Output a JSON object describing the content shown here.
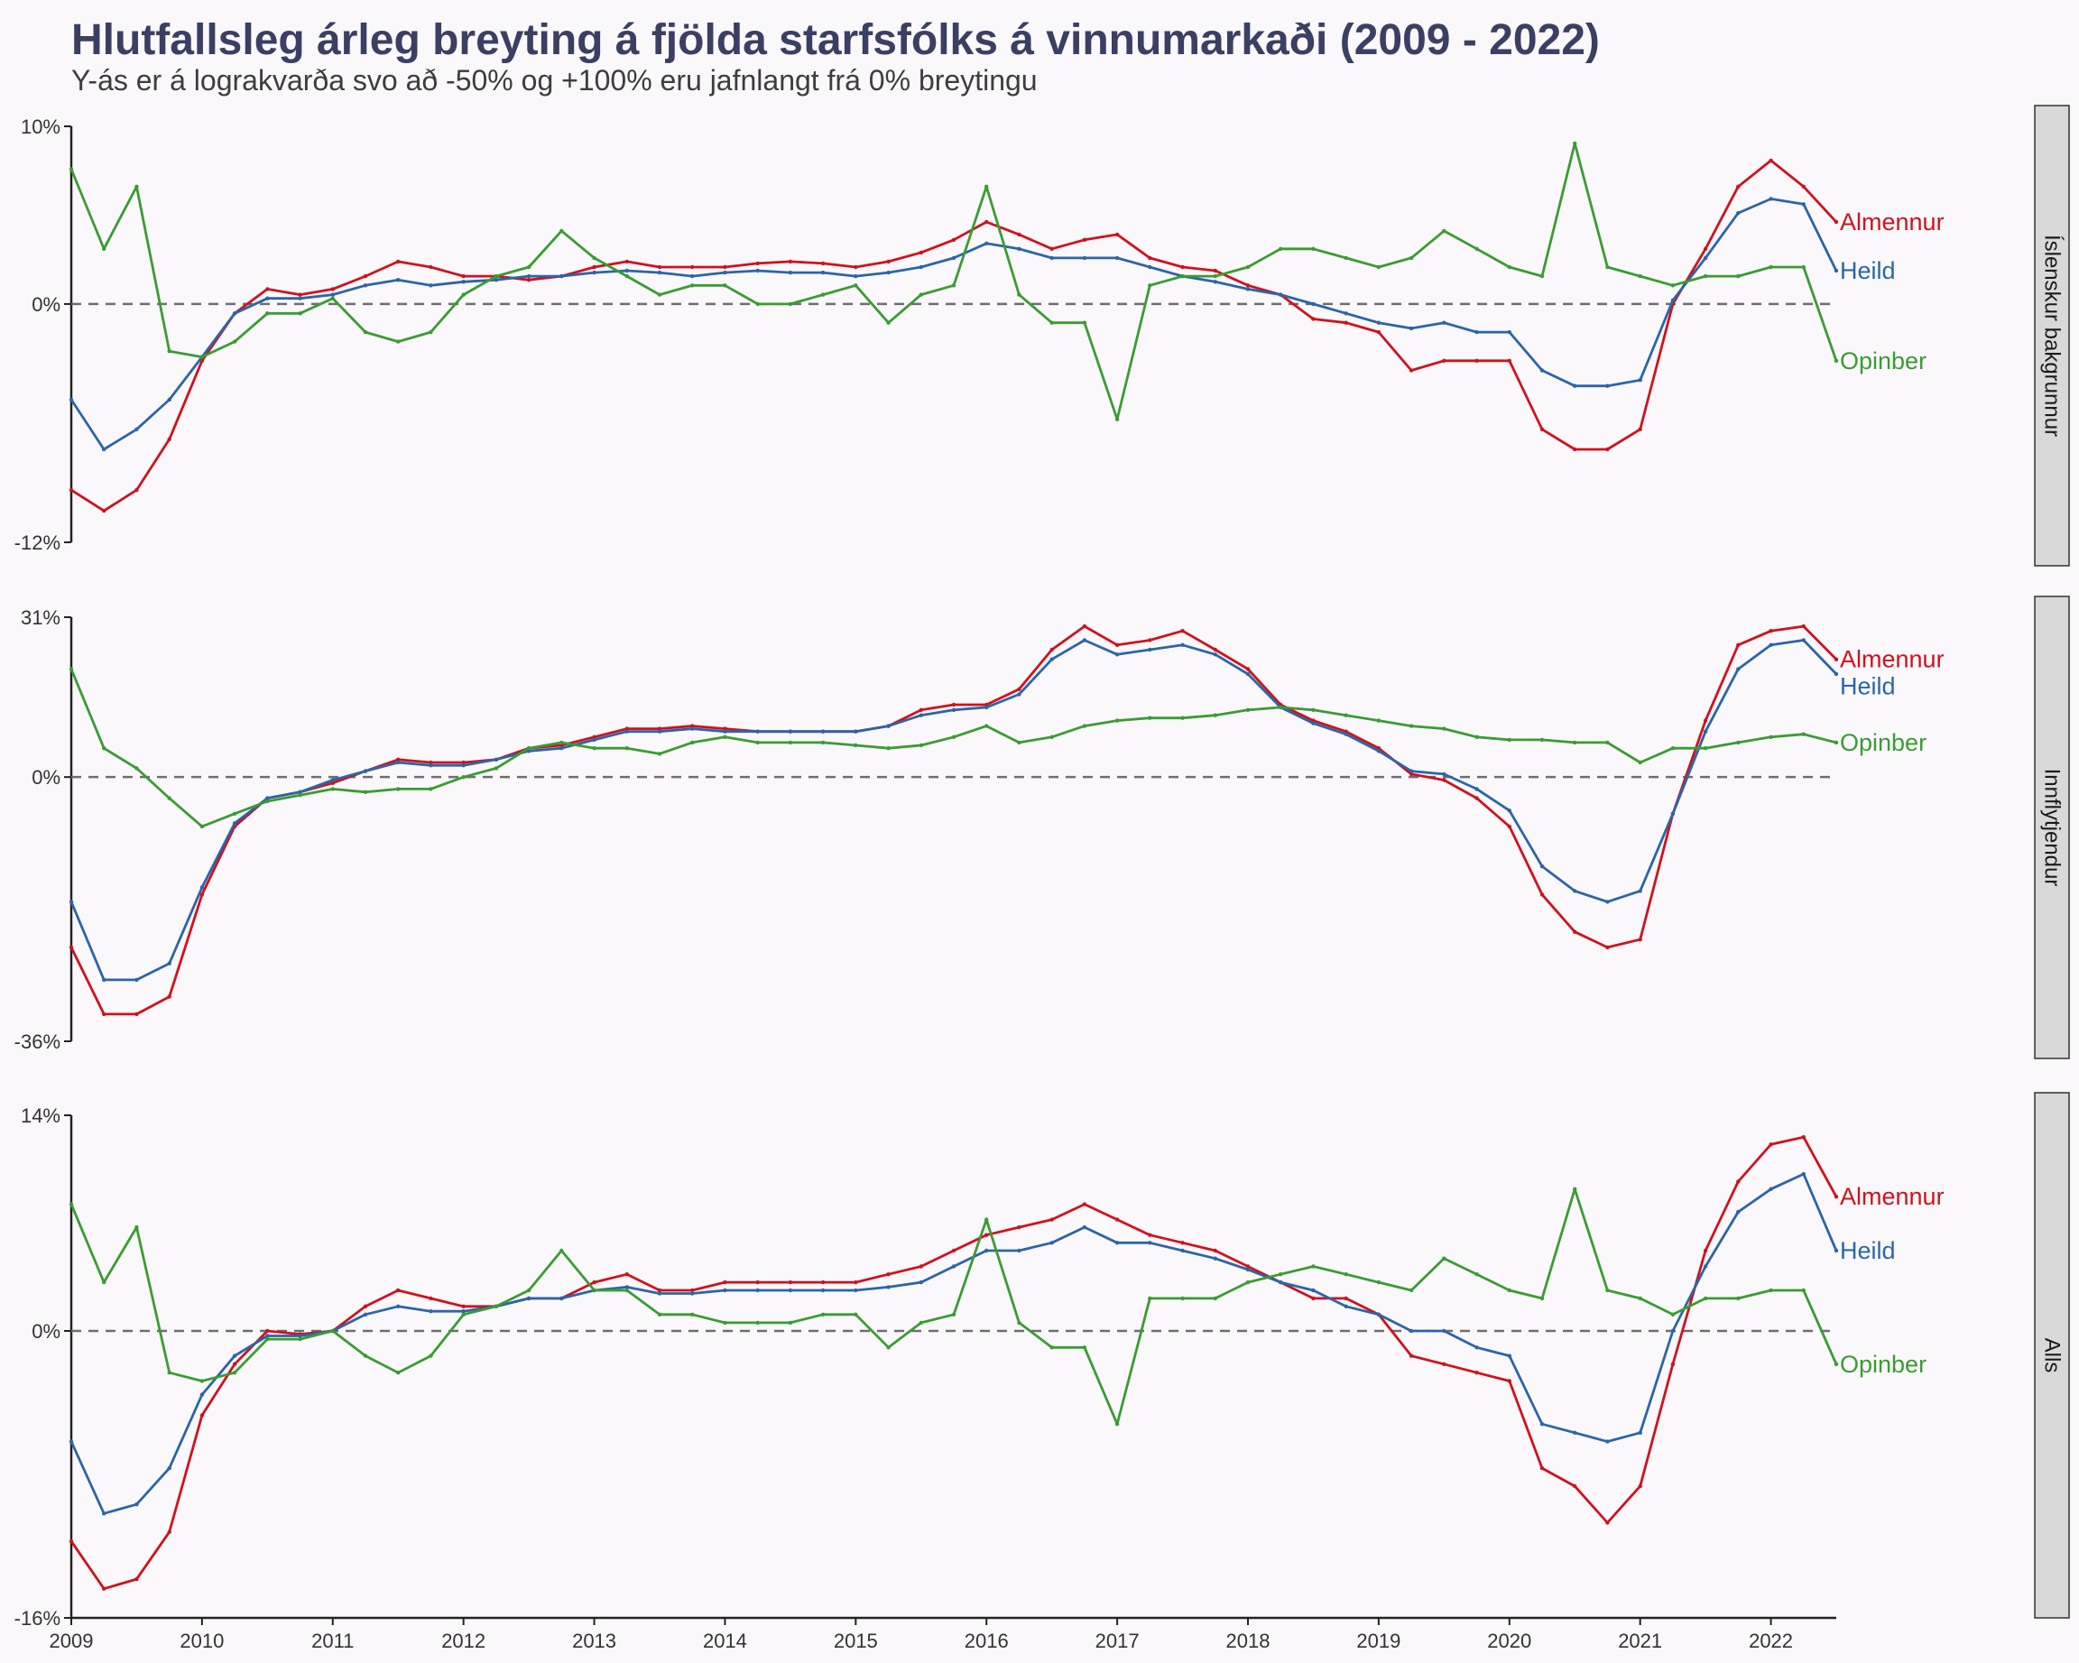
{
  "title": "Hlutfallsleg árleg breyting á fjölda starfsfólks á vinnumarkaði (2009 - 2022)",
  "subtitle": "Y-ás er á lograkvarða svo að -50% og +100% eru jafnlangt frá 0% breytingu",
  "colors": {
    "background": "#faf8fa",
    "Almennur": "#d0111f",
    "Heild": "#2c65a8",
    "Opinber": "#3a9c33",
    "zero_line": "#6e6e6e",
    "strip_fill": "#d9d9d9"
  },
  "chart_data": {
    "type": "line",
    "x_range": [
      2009.0,
      2022.5
    ],
    "x_ticks": [
      "2009",
      "2010",
      "2011",
      "2012",
      "2013",
      "2014",
      "2015",
      "2016",
      "2017",
      "2018",
      "2019",
      "2020",
      "2021",
      "2022"
    ],
    "y_scale": "log (growth ratio)",
    "reference_line": "0% dashed",
    "x": [
      2009.0,
      2009.25,
      2009.5,
      2009.75,
      2010.0,
      2010.25,
      2010.5,
      2010.75,
      2011.0,
      2011.25,
      2011.5,
      2011.75,
      2012.0,
      2012.25,
      2012.5,
      2012.75,
      2013.0,
      2013.25,
      2013.5,
      2013.75,
      2014.0,
      2014.25,
      2014.5,
      2014.75,
      2015.0,
      2015.25,
      2015.5,
      2015.75,
      2016.0,
      2016.25,
      2016.5,
      2016.75,
      2017.0,
      2017.25,
      2017.5,
      2017.75,
      2018.0,
      2018.25,
      2018.5,
      2018.75,
      2019.0,
      2019.25,
      2019.5,
      2019.75,
      2020.0,
      2020.25,
      2020.5,
      2020.75,
      2021.0,
      2021.25,
      2021.5,
      2021.75,
      2022.0,
      2022.25,
      2022.5
    ],
    "panels": [
      {
        "strip_label": "Íslenskur bakgrunnur",
        "ylim": [
          -12,
          10
        ],
        "y_tick_labels": [
          "10%",
          "0%",
          "-12%"
        ],
        "series": [
          {
            "name": "Almennur",
            "values": [
              -9.5,
              -10.5,
              -9.5,
              -7.0,
              -3.0,
              -0.5,
              0.8,
              0.5,
              0.8,
              1.5,
              2.3,
              2.0,
              1.5,
              1.5,
              1.3,
              1.5,
              2.0,
              2.3,
              2.0,
              2.0,
              2.0,
              2.2,
              2.3,
              2.2,
              2.0,
              2.3,
              2.8,
              3.5,
              4.5,
              3.8,
              3.0,
              3.5,
              3.8,
              2.5,
              2.0,
              1.8,
              1.0,
              0.5,
              -0.8,
              -1.0,
              -1.5,
              -3.5,
              -3.0,
              -3.0,
              -3.0,
              -6.5,
              -7.5,
              -7.5,
              -6.5,
              0.0,
              3.0,
              6.5,
              8.0,
              6.5,
              4.5
            ]
          },
          {
            "name": "Heild",
            "values": [
              -5.0,
              -7.5,
              -6.5,
              -5.0,
              -2.8,
              -0.5,
              0.3,
              0.3,
              0.5,
              1.0,
              1.3,
              1.0,
              1.2,
              1.3,
              1.5,
              1.5,
              1.7,
              1.8,
              1.7,
              1.5,
              1.7,
              1.8,
              1.7,
              1.7,
              1.5,
              1.7,
              2.0,
              2.5,
              3.3,
              3.0,
              2.5,
              2.5,
              2.5,
              2.0,
              1.5,
              1.2,
              0.8,
              0.5,
              0.0,
              -0.5,
              -1.0,
              -1.3,
              -1.0,
              -1.5,
              -1.5,
              -3.5,
              -4.3,
              -4.3,
              -4.0,
              0.2,
              2.5,
              5.0,
              5.8,
              5.5,
              1.8
            ]
          },
          {
            "name": "Opinber",
            "values": [
              7.5,
              3.0,
              6.5,
              -2.5,
              -2.8,
              -2.0,
              -0.5,
              -0.5,
              0.3,
              -1.5,
              -2.0,
              -1.5,
              0.5,
              1.5,
              2.0,
              4.0,
              2.5,
              1.5,
              0.5,
              1.0,
              1.0,
              0.0,
              0.0,
              0.5,
              1.0,
              -1.0,
              0.5,
              1.0,
              6.5,
              0.5,
              -1.0,
              -1.0,
              -6.0,
              1.0,
              1.5,
              1.5,
              2.0,
              3.0,
              3.0,
              2.5,
              2.0,
              2.5,
              4.0,
              3.0,
              2.0,
              1.5,
              9.0,
              2.0,
              1.5,
              1.0,
              1.5,
              1.5,
              2.0,
              2.0,
              -3.0
            ]
          }
        ]
      },
      {
        "strip_label": "Innflytjendur",
        "ylim": [
          -36,
          31
        ],
        "y_tick_labels": [
          "31%",
          "0%",
          "-36%"
        ],
        "series": [
          {
            "name": "Almennur",
            "values": [
              -25.0,
              -33.0,
              -33.0,
              -31.0,
              -18.0,
              -8.0,
              -3.5,
              -2.5,
              -1.0,
              1.0,
              3.0,
              2.5,
              2.5,
              3.0,
              5.0,
              5.5,
              7.0,
              8.5,
              8.5,
              9.0,
              8.5,
              8.0,
              8.0,
              8.0,
              8.0,
              9.0,
              12.0,
              13.0,
              13.0,
              16.0,
              24.0,
              29.0,
              25.0,
              26.0,
              28.0,
              24.0,
              20.0,
              13.0,
              10.0,
              8.0,
              5.0,
              0.5,
              -0.5,
              -3.5,
              -8.0,
              -18.0,
              -23.0,
              -25.0,
              -24.0,
              -6.0,
              10.0,
              25.0,
              28.0,
              29.0,
              22.0
            ]
          },
          {
            "name": "Heild",
            "values": [
              -19.0,
              -29.0,
              -29.0,
              -27.0,
              -17.0,
              -7.5,
              -3.5,
              -2.5,
              -0.5,
              1.0,
              2.5,
              2.0,
              2.0,
              3.0,
              4.5,
              5.0,
              6.5,
              8.0,
              8.0,
              8.5,
              8.0,
              8.0,
              8.0,
              8.0,
              8.0,
              9.0,
              11.0,
              12.0,
              12.5,
              15.0,
              22.0,
              26.0,
              23.0,
              24.0,
              25.0,
              23.0,
              19.0,
              12.5,
              9.5,
              7.5,
              4.5,
              1.0,
              0.5,
              -2.0,
              -5.5,
              -14.0,
              -17.5,
              -19.0,
              -17.5,
              -6.0,
              8.0,
              20.0,
              25.0,
              26.0,
              19.0
            ]
          },
          {
            "name": "Opinber",
            "values": [
              20.0,
              5.0,
              1.5,
              -3.5,
              -8.0,
              -6.0,
              -4.0,
              -3.0,
              -2.0,
              -2.5,
              -2.0,
              -2.0,
              0.0,
              1.5,
              5.0,
              6.0,
              5.0,
              5.0,
              4.0,
              6.0,
              7.0,
              6.0,
              6.0,
              6.0,
              5.5,
              5.0,
              5.5,
              7.0,
              9.0,
              6.0,
              7.0,
              9.0,
              10.0,
              10.5,
              10.5,
              11.0,
              12.0,
              12.5,
              12.0,
              11.0,
              10.0,
              9.0,
              8.5,
              7.0,
              6.5,
              6.5,
              6.0,
              6.0,
              2.5,
              5.0,
              5.0,
              6.0,
              7.0,
              7.5,
              6.0
            ]
          }
        ]
      },
      {
        "strip_label": "Alls",
        "ylim": [
          -16,
          14
        ],
        "y_tick_labels": [
          "14%",
          "0%",
          "-16%"
        ],
        "series": [
          {
            "name": "Almennur",
            "values": [
              -12.0,
              -14.5,
              -14.0,
              -11.5,
              -5.0,
              -2.0,
              0.0,
              -0.2,
              0.0,
              1.5,
              2.5,
              2.0,
              1.5,
              1.5,
              2.0,
              2.0,
              3.0,
              3.5,
              2.5,
              2.5,
              3.0,
              3.0,
              3.0,
              3.0,
              3.0,
              3.5,
              4.0,
              5.0,
              6.0,
              6.5,
              7.0,
              8.0,
              7.0,
              6.0,
              5.5,
              5.0,
              4.0,
              3.0,
              2.0,
              2.0,
              1.0,
              -1.5,
              -2.0,
              -2.5,
              -3.0,
              -8.0,
              -9.0,
              -11.0,
              -9.0,
              -2.0,
              5.0,
              9.5,
              12.0,
              12.5,
              8.5
            ]
          },
          {
            "name": "Heild",
            "values": [
              -6.5,
              -10.5,
              -10.0,
              -8.0,
              -3.8,
              -1.5,
              -0.3,
              -0.3,
              0.0,
              1.0,
              1.5,
              1.2,
              1.2,
              1.5,
              2.0,
              2.0,
              2.5,
              2.7,
              2.3,
              2.3,
              2.5,
              2.5,
              2.5,
              2.5,
              2.5,
              2.7,
              3.0,
              4.0,
              5.0,
              5.0,
              5.5,
              6.5,
              5.5,
              5.5,
              5.0,
              4.5,
              3.8,
              3.0,
              2.5,
              1.5,
              1.0,
              0.0,
              0.0,
              -1.0,
              -1.5,
              -5.5,
              -6.0,
              -6.5,
              -6.0,
              0.0,
              4.0,
              7.5,
              9.0,
              10.0,
              5.0
            ]
          },
          {
            "name": "Opinber",
            "values": [
              8.0,
              3.0,
              6.5,
              -2.5,
              -3.0,
              -2.5,
              -0.5,
              -0.5,
              0.0,
              -1.5,
              -2.5,
              -1.5,
              1.0,
              1.5,
              2.5,
              5.0,
              2.5,
              2.5,
              1.0,
              1.0,
              0.5,
              0.5,
              0.5,
              1.0,
              1.0,
              -1.0,
              0.5,
              1.0,
              7.0,
              0.5,
              -1.0,
              -1.0,
              -5.5,
              2.0,
              2.0,
              2.0,
              3.0,
              3.5,
              4.0,
              3.5,
              3.0,
              2.5,
              4.5,
              3.5,
              2.5,
              2.0,
              9.0,
              2.5,
              2.0,
              1.0,
              2.0,
              2.0,
              2.5,
              2.5,
              -2.0
            ]
          }
        ]
      }
    ]
  }
}
